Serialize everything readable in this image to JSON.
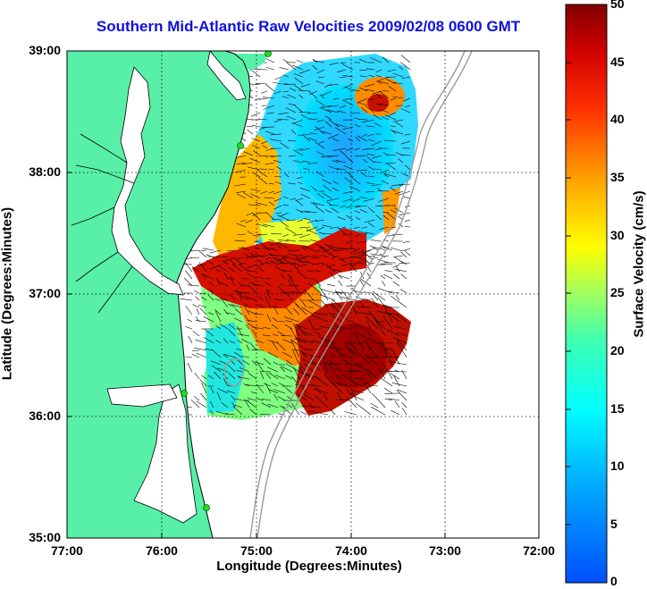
{
  "title": "Southern Mid-Atlantic Raw Velocities 2009/02/08 0600 GMT",
  "map": {
    "xlabel": "Longitude (Degrees:Minutes)",
    "ylabel": "Latitude (Degrees:Minutes)",
    "x_ticks": [
      "77:00",
      "76:00",
      "75:00",
      "74:00",
      "73:00",
      "72:00"
    ],
    "y_ticks": [
      "39:00",
      "38:00",
      "37:00",
      "36:00",
      "35:00"
    ],
    "lon_range": [
      -77,
      -72
    ],
    "lat_range": [
      35,
      39
    ],
    "grid": "dotted",
    "colors": {
      "land": "#58f0a8",
      "coast": "#000000",
      "bathymetry": "#9a9a9a",
      "stations": "#22dd22",
      "vectors": "#000000"
    }
  },
  "colorbar": {
    "label": "Surface Velocity (cm/s)",
    "ticks": [
      "0",
      "5",
      "10",
      "15",
      "20",
      "25",
      "30",
      "35",
      "40",
      "45",
      "50"
    ],
    "range": [
      0,
      50
    ],
    "colormap": "jet"
  }
}
